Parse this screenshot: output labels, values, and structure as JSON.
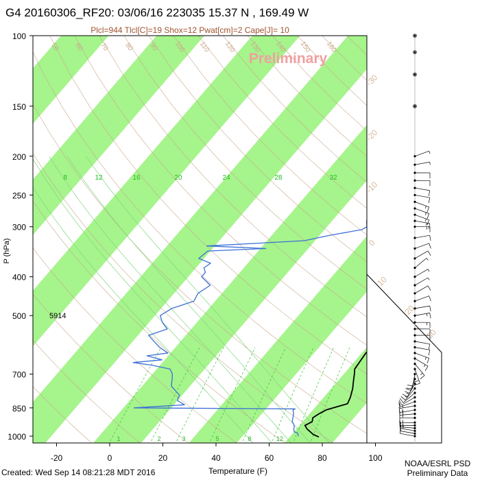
{
  "header": {
    "title": "G4 20160306_RF20: 03/06/16 223035  15.37 N , 169.49 W",
    "indices": "Plcl=944 Tlcl[C]=19 Shox=12 Pwat[cm]=2 Cape[J]= 10"
  },
  "watermark": "Preliminary",
  "footer": {
    "created": "Created: Wed Sep 14 08:21:28 MDT 2016",
    "org": "NOAA/ESRL PSD",
    "status": "Preliminary Data"
  },
  "colors": {
    "band": "#a6f48c",
    "temperature": "#000000",
    "dewpoint": "#3a6fd6",
    "dry_adiabat": "#c7a88c",
    "moist_adiabat": "#7fd67f",
    "mixing_ratio": "#2fbf2f",
    "frame": "#000000"
  },
  "chart_data": {
    "type": "line",
    "title": "G4 20160306_RF20: 03/06/16 223035  15.37 N , 169.49 W",
    "xlabel": "Temperature (F)",
    "ylabel": "P (hPa)",
    "x_ticks": [
      -20,
      0,
      20,
      40,
      60,
      80,
      100
    ],
    "y_ticks": [
      100,
      150,
      200,
      250,
      300,
      400,
      500,
      700,
      850,
      1000
    ],
    "y_scale": "log",
    "xlim": [
      -28,
      118
    ],
    "ylim": [
      1040,
      100
    ],
    "height_annotation": {
      "label": "5914",
      "pressure": 500
    },
    "mixing_ratio_labels": [
      "8",
      "12",
      "16",
      "20",
      "24",
      "28",
      "32"
    ],
    "mixing_ratio_labels_bottom": [
      "1",
      "2",
      "3",
      "5",
      "8",
      "12"
    ],
    "isotherm_labels": [
      "50",
      "60",
      "70",
      "80",
      "90",
      "100",
      "110",
      "120",
      "130",
      "140",
      "150",
      "160"
    ],
    "right_isotherm_labels": [
      "-30",
      "-20",
      "-10",
      "0",
      "10",
      "20",
      "30"
    ],
    "series": [
      {
        "name": "Temperature",
        "points": [
          [
            1005,
            79
          ],
          [
            990,
            76
          ],
          [
            975,
            74
          ],
          [
            960,
            72
          ],
          [
            940,
            70
          ],
          [
            920,
            71.5
          ],
          [
            900,
            70.5
          ],
          [
            880,
            71.5
          ],
          [
            860,
            73
          ],
          [
            845,
            76
          ],
          [
            830,
            79
          ],
          [
            800,
            78
          ],
          [
            760,
            76
          ],
          [
            730,
            74
          ],
          [
            700,
            72
          ],
          [
            680,
            70.5
          ],
          [
            650,
            70
          ],
          [
            620,
            69.5
          ],
          [
            600,
            70
          ],
          [
            570,
            69
          ],
          [
            540,
            67.5
          ],
          [
            500,
            65
          ],
          [
            470,
            62.5
          ],
          [
            440,
            60
          ],
          [
            420,
            59
          ],
          [
            400,
            58
          ],
          [
            380,
            57
          ],
          [
            360,
            55.5
          ],
          [
            340,
            54.5
          ],
          [
            320,
            53
          ],
          [
            300,
            51
          ],
          [
            280,
            48
          ],
          [
            260,
            45.5
          ],
          [
            240,
            43.5
          ],
          [
            220,
            41
          ],
          [
            205,
            38.5
          ],
          [
            195,
            36.5
          ]
        ]
      },
      {
        "name": "Dewpoint",
        "points": [
          [
            1000,
            71
          ],
          [
            985,
            70
          ],
          [
            975,
            68
          ],
          [
            960,
            67
          ],
          [
            940,
            66
          ],
          [
            920,
            64
          ],
          [
            900,
            63
          ],
          [
            880,
            62
          ],
          [
            860,
            60.5
          ],
          [
            855,
            61
          ],
          [
            850,
            0
          ],
          [
            835,
            18
          ],
          [
            825,
            16
          ],
          [
            815,
            14
          ],
          [
            805,
            13.5
          ],
          [
            790,
            13
          ],
          [
            770,
            10
          ],
          [
            750,
            7
          ],
          [
            720,
            5
          ],
          [
            700,
            3.5
          ],
          [
            680,
            1
          ],
          [
            665,
            -7
          ],
          [
            655,
            -15
          ],
          [
            645,
            -5
          ],
          [
            630,
            -12
          ],
          [
            620,
            -5
          ],
          [
            600,
            -10
          ],
          [
            580,
            -14
          ],
          [
            560,
            -18
          ],
          [
            540,
            -13
          ],
          [
            520,
            -17
          ],
          [
            500,
            -20
          ],
          [
            480,
            -18
          ],
          [
            460,
            -12
          ],
          [
            440,
            -13
          ],
          [
            420,
            -11
          ],
          [
            400,
            -17
          ],
          [
            390,
            -17
          ],
          [
            380,
            -19
          ],
          [
            370,
            -18
          ],
          [
            360,
            -24
          ],
          [
            345,
            -23
          ],
          [
            340,
            -2
          ],
          [
            335,
            -25
          ],
          [
            325,
            10
          ],
          [
            315,
            18
          ],
          [
            305,
            28
          ],
          [
            300,
            29
          ],
          [
            290,
            27
          ],
          [
            270,
            24
          ],
          [
            250,
            21
          ],
          [
            230,
            18
          ],
          [
            215,
            16
          ]
        ]
      }
    ],
    "wind_pressures": [
      1000,
      985,
      970,
      955,
      940,
      925,
      900,
      880,
      860,
      840,
      820,
      800,
      780,
      760,
      740,
      720,
      700,
      680,
      660,
      640,
      620,
      600,
      580,
      560,
      540,
      520,
      500,
      480,
      460,
      440,
      420,
      400,
      380,
      360,
      340,
      320,
      300,
      290,
      280,
      270,
      260,
      250,
      240,
      230,
      220,
      210,
      200,
      150,
      125,
      110,
      100
    ],
    "wind_speeds_kt": [
      10,
      10,
      15,
      15,
      15,
      15,
      20,
      20,
      15,
      15,
      10,
      10,
      10,
      15,
      15,
      20,
      20,
      20,
      15,
      15,
      15,
      10,
      10,
      10,
      10,
      15,
      15,
      10,
      10,
      10,
      5,
      5,
      5,
      10,
      10,
      10,
      15,
      15,
      15,
      15,
      15,
      10,
      10,
      10,
      10,
      5,
      5,
      5,
      5,
      5,
      5
    ],
    "wind_dirs_deg": [
      80,
      80,
      80,
      85,
      90,
      90,
      90,
      95,
      100,
      100,
      110,
      120,
      130,
      140,
      150,
      160,
      170,
      200,
      220,
      240,
      250,
      260,
      260,
      270,
      270,
      270,
      280,
      280,
      290,
      300,
      300,
      300,
      310,
      300,
      290,
      280,
      270,
      260,
      250,
      250,
      250,
      260,
      260,
      270,
      270,
      280,
      290,
      0,
      0,
      0,
      0
    ]
  }
}
